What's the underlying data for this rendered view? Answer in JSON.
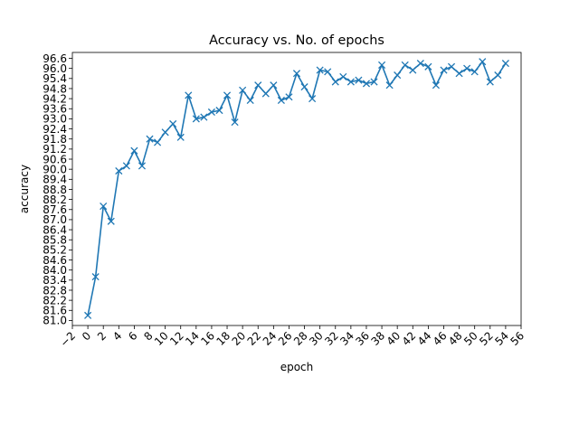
{
  "chart_data": {
    "type": "line",
    "title": "Accuracy vs. No. of epochs",
    "xlabel": "epoch",
    "ylabel": "accuracy",
    "xlim": [
      -2,
      56
    ],
    "ylim": [
      80.7,
      96.95
    ],
    "x_ticks": [
      "−2",
      "0",
      "2",
      "4",
      "6",
      "8",
      "10",
      "12",
      "14",
      "16",
      "18",
      "20",
      "22",
      "24",
      "26",
      "28",
      "30",
      "32",
      "34",
      "36",
      "38",
      "40",
      "42",
      "44",
      "46",
      "48",
      "50",
      "52",
      "54",
      "56"
    ],
    "y_ticks": [
      "81.0",
      "81.6",
      "82.2",
      "82.8",
      "83.4",
      "84.0",
      "84.6",
      "85.2",
      "85.8",
      "86.4",
      "87.0",
      "87.6",
      "88.2",
      "88.8",
      "89.4",
      "90.0",
      "90.6",
      "91.2",
      "91.8",
      "92.4",
      "93.0",
      "93.6",
      "94.2",
      "94.8",
      "95.4",
      "96.0",
      "96.6"
    ],
    "grid": false,
    "marker": "x",
    "color": "#1f77b4",
    "series": [
      {
        "x": [
          0,
          1,
          2,
          3,
          4,
          5,
          6,
          7,
          8,
          9,
          10,
          11,
          12,
          13,
          14,
          15,
          16,
          17,
          18,
          19,
          20,
          21,
          22,
          23,
          24,
          25,
          26,
          27,
          28,
          29,
          30,
          31,
          32,
          33,
          34,
          35,
          36,
          37,
          38,
          39,
          40,
          41,
          42,
          43,
          44,
          45,
          46,
          47,
          48,
          49,
          50,
          51,
          52,
          53,
          54
        ],
        "values": [
          81.3,
          83.6,
          87.8,
          86.9,
          89.9,
          90.2,
          91.1,
          90.2,
          91.8,
          91.6,
          92.2,
          92.7,
          91.9,
          94.4,
          93.0,
          93.1,
          93.4,
          93.5,
          94.4,
          92.8,
          94.7,
          94.1,
          95.0,
          94.5,
          95.0,
          94.1,
          94.3,
          95.7,
          94.9,
          94.2,
          95.9,
          95.8,
          95.2,
          95.5,
          95.2,
          95.3,
          95.1,
          95.2,
          96.2,
          95.0,
          95.6,
          96.2,
          95.9,
          96.3,
          96.1,
          95.0,
          95.9,
          96.1,
          95.7,
          96.0,
          95.8,
          96.4,
          95.2,
          95.6,
          96.3
        ]
      }
    ]
  }
}
